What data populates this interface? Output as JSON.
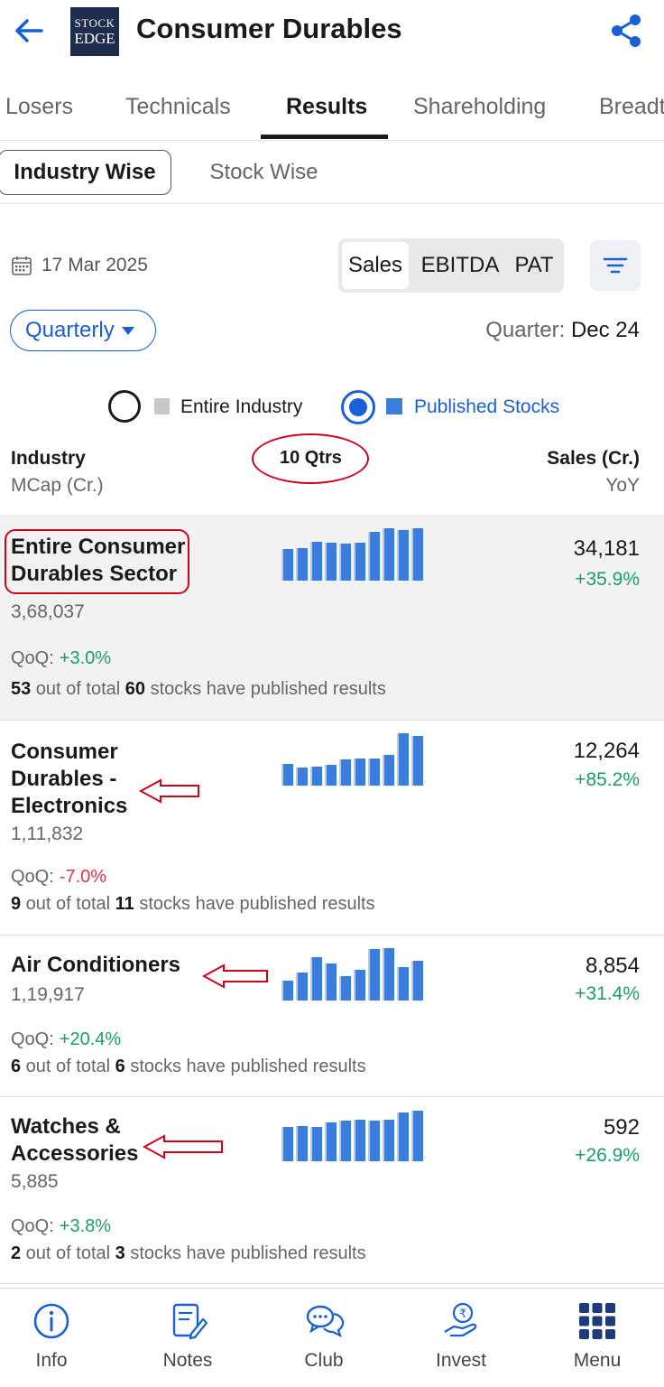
{
  "header": {
    "title": "Consumer Durables",
    "logo_line1": "STOCK",
    "logo_line2": "EDGE"
  },
  "tabs": [
    {
      "label": "Losers"
    },
    {
      "label": "Technicals"
    },
    {
      "label": "Results"
    },
    {
      "label": "Shareholding"
    },
    {
      "label": "Breadt"
    }
  ],
  "segment": {
    "active": "Industry Wise",
    "inactive": "Stock Wise"
  },
  "date": "17 Mar 2025",
  "metrics": [
    "Sales",
    "EBITDA",
    "PAT"
  ],
  "quarterly": {
    "label": "Quarterly",
    "quarter_label": "Quarter:",
    "quarter_value": "Dec 24"
  },
  "legend": {
    "entire": "Entire Industry",
    "published": "Published Stocks"
  },
  "columns": {
    "industry": "Industry",
    "mcap": "MCap (Cr.)",
    "qtrs": "10 Qtrs",
    "sales": "Sales (Cr.)",
    "yoy": "YoY"
  },
  "colors": {
    "accent": "#1a5fd6",
    "bar_blue": "#3b7ddd",
    "bar_gray": "#c8c8c8",
    "positive": "#1c9c6e",
    "negative": "#e0334c",
    "annotation_red": "#d0021b"
  },
  "industries": [
    {
      "name_lines": [
        "Entire Consumer",
        "Durables Sector"
      ],
      "mcap": "3,68,037",
      "sales": "34,181",
      "yoy": "+35.9%",
      "qoq_label": "QoQ:",
      "qoq": "+3.0%",
      "pub_a": "53",
      "pub_mid": " out of total ",
      "pub_b": "60",
      "pub_end": " stocks have published results",
      "spark": [
        0.61,
        0.62,
        0.74,
        0.72,
        0.71,
        0.73,
        0.93,
        1.0,
        0.97,
        1.0
      ]
    },
    {
      "name_lines": [
        "Consumer",
        "Durables -",
        "Electronics"
      ],
      "mcap": "1,11,832",
      "sales": "12,264",
      "yoy": "+85.2%",
      "qoq_label": "QoQ:",
      "qoq": "-7.0%",
      "pub_a": "9",
      "pub_mid": " out of total ",
      "pub_b": "11",
      "pub_end": " stocks have published results",
      "spark": [
        0.41,
        0.34,
        0.37,
        0.39,
        0.5,
        0.51,
        0.52,
        0.59,
        1.0,
        0.94
      ]
    },
    {
      "name_lines": [
        "Air Conditioners"
      ],
      "mcap": "1,19,917",
      "sales": "8,854",
      "yoy": "+31.4%",
      "qoq_label": "QoQ:",
      "qoq": "+20.4%",
      "pub_a": "6",
      "pub_mid": " out of total ",
      "pub_b": "6",
      "pub_end": " stocks have published results",
      "spark": [
        0.38,
        0.53,
        0.83,
        0.7,
        0.47,
        0.58,
        0.98,
        1.0,
        0.64,
        0.76
      ]
    },
    {
      "name_lines": [
        "Watches &",
        "Accessories"
      ],
      "mcap": "5,885",
      "sales": "592",
      "yoy": "+26.9%",
      "qoq_label": "QoQ:",
      "qoq": "+3.8%",
      "pub_a": "2",
      "pub_mid": " out of total ",
      "pub_b": "3",
      "pub_end": " stocks have published results",
      "spark": [
        0.66,
        0.68,
        0.66,
        0.74,
        0.78,
        0.79,
        0.78,
        0.8,
        0.93,
        0.96
      ]
    }
  ],
  "nav": [
    {
      "label": "Info",
      "icon": "info-icon"
    },
    {
      "label": "Notes",
      "icon": "notes-icon"
    },
    {
      "label": "Club",
      "icon": "club-icon"
    },
    {
      "label": "Invest",
      "icon": "invest-icon"
    },
    {
      "label": "Menu",
      "icon": "menu-grid-icon"
    }
  ]
}
